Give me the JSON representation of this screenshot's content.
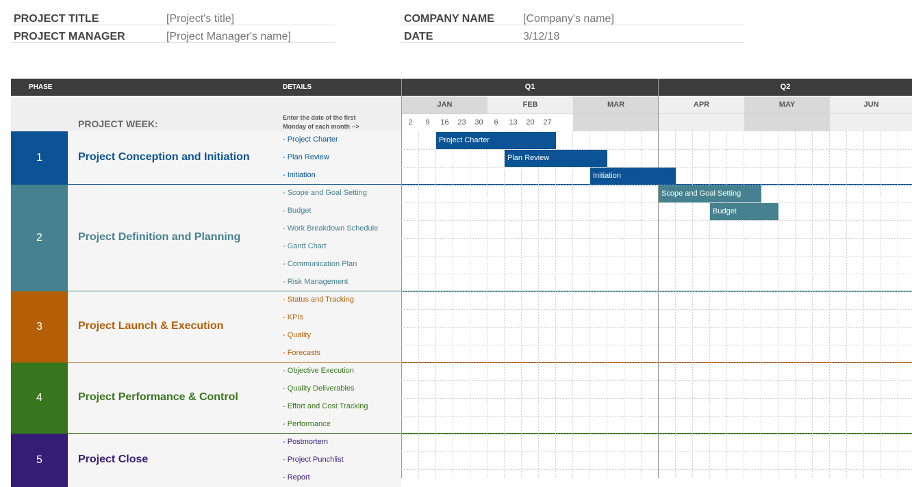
{
  "header": {
    "project_title_label": "PROJECT TITLE",
    "project_title_value": "[Project's title]",
    "project_manager_label": "PROJECT MANAGER",
    "project_manager_value": "[Project Manager's name]",
    "company_name_label": "COMPANY NAME",
    "company_name_value": "[Company's name]",
    "date_label": "DATE",
    "date_value": "3/12/18"
  },
  "table": {
    "phase_header": "PHASE",
    "details_header": "DETAILS",
    "quarters": [
      "Q1",
      "Q2"
    ],
    "months": [
      "JAN",
      "FEB",
      "MAR",
      "APR",
      "MAY",
      "JUN"
    ],
    "week_numbers": [
      "2",
      "9",
      "16",
      "23",
      "30",
      "6",
      "13",
      "20",
      "27"
    ],
    "project_week_label": "PROJECT WEEK:",
    "enter_note_line1": "Enter the date of the first",
    "enter_note_line2": "Monday of each month -->"
  },
  "phases": [
    {
      "number": "1",
      "title": "Project Conception and Initiation",
      "color": "#0b5394",
      "details": [
        "- Project Charter",
        "- Plan Review",
        "- Initiation"
      ]
    },
    {
      "number": "2",
      "title": "Project Definition and Planning",
      "color": "#45818e",
      "details": [
        "- Scope and Goal Setting",
        "- Budget",
        "- Work Breakdown Schedule",
        "- Gantt Chart",
        "- Communication Plan",
        "- Risk Management"
      ]
    },
    {
      "number": "3",
      "title": "Project Launch & Execution",
      "color": "#b45f06",
      "details": [
        "- Status and Tracking",
        "- KPIs",
        "- Quality",
        "- Forecasts"
      ]
    },
    {
      "number": "4",
      "title": "Project Performance & Control",
      "color": "#38761d",
      "details": [
        "- Objective Execution",
        "- Quality Deliverables",
        "- Effort and Cost Tracking",
        "- Performance"
      ]
    },
    {
      "number": "5",
      "title": "Project Close",
      "color": "#351c75",
      "details": [
        "- Postmortem",
        "- Project Punchlist",
        "- Report"
      ]
    }
  ],
  "tasks": [
    {
      "label": "Project Charter",
      "start_week": 2,
      "span_weeks": 7,
      "row": 0,
      "color": "#0b5394"
    },
    {
      "label": "Plan Review",
      "start_week": 6,
      "span_weeks": 6,
      "row": 1,
      "color": "#0b5394"
    },
    {
      "label": "Initiation",
      "start_week": 11,
      "span_weeks": 5,
      "row": 2,
      "color": "#0b5394"
    },
    {
      "label": "Scope and Goal Setting",
      "start_week": 15,
      "span_weeks": 6,
      "row": 3,
      "color": "#45818e"
    },
    {
      "label": "Budget",
      "start_week": 18,
      "span_weeks": 4,
      "row": 4,
      "color": "#45818e"
    }
  ]
}
